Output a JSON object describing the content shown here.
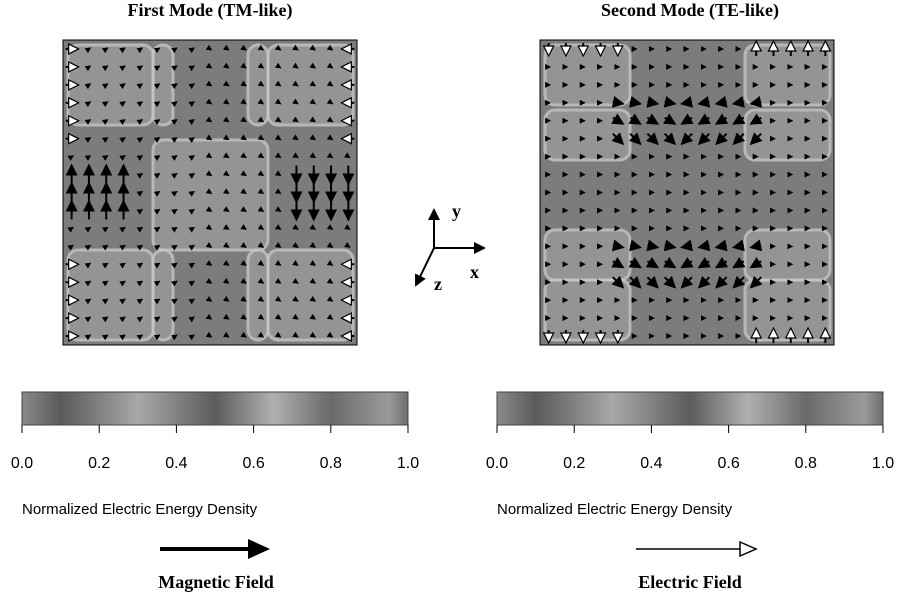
{
  "panels": [
    {
      "title": "First Mode (TM-like)",
      "colorbar": {
        "ticks": [
          {
            "value": 0,
            "label": "0.0"
          },
          {
            "value": 0.2,
            "label": "0.2"
          },
          {
            "value": 0.4,
            "label": "0.4"
          },
          {
            "value": 0.6,
            "label": "0.6"
          },
          {
            "value": 0.8,
            "label": "0.8"
          },
          {
            "value": 1,
            "label": "1.0"
          }
        ],
        "label": "Normalized Electric Energy Density"
      },
      "field_legend": "Magnetic Field"
    },
    {
      "title": "Second Mode (TE-like)",
      "colorbar": {
        "ticks": [
          {
            "value": 0,
            "label": "0.0"
          },
          {
            "value": 0.2,
            "label": "0.2"
          },
          {
            "value": 0.4,
            "label": "0.4"
          },
          {
            "value": 0.6,
            "label": "0.6"
          },
          {
            "value": 0.8,
            "label": "0.8"
          },
          {
            "value": 1,
            "label": "1.0"
          }
        ],
        "label": "Normalized Electric Energy Density"
      },
      "field_legend": "Electric Field"
    }
  ],
  "axes": {
    "y": "y",
    "x": "x",
    "z": "z"
  }
}
